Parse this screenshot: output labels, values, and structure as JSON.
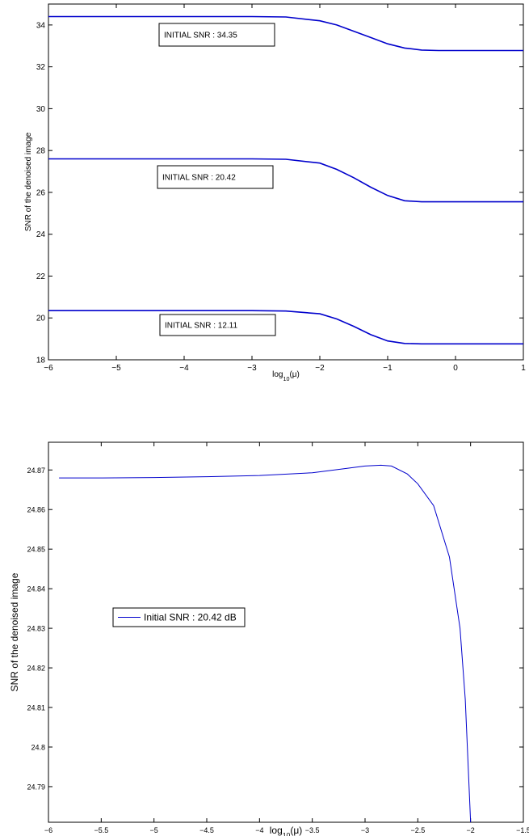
{
  "chart_data": [
    {
      "type": "line",
      "xlabel": "log_10(μ)",
      "ylabel": "SNR of the denoised image",
      "xlim": [
        -6,
        1
      ],
      "ylim": [
        18,
        35
      ],
      "xticks": [
        -6,
        -5,
        -4,
        -3,
        -2,
        -1,
        0,
        1
      ],
      "xtick_labels": [
        "−6",
        "−5",
        "−4",
        "−3",
        "−2",
        "−1",
        "0",
        "1"
      ],
      "yticks": [
        18,
        20,
        22,
        24,
        26,
        28,
        30,
        32,
        34
      ],
      "ytick_labels": [
        "18",
        "20",
        "22",
        "24",
        "26",
        "28",
        "30",
        "32",
        "34"
      ],
      "color": "#0000cc",
      "series": [
        {
          "x": [
            -6,
            -3,
            -2.5,
            -2,
            -1.75,
            -1.5,
            -1.25,
            -1,
            -0.75,
            -0.5,
            -0.25,
            0,
            1
          ],
          "y": [
            34.4,
            34.4,
            34.38,
            34.2,
            34.0,
            33.7,
            33.4,
            33.1,
            32.9,
            32.8,
            32.78,
            32.78,
            32.78
          ],
          "annotation": "INITIAL SNR : 34.35"
        },
        {
          "x": [
            -6,
            -3,
            -2.5,
            -2,
            -1.75,
            -1.5,
            -1.25,
            -1,
            -0.75,
            -0.5,
            -0.25,
            0,
            1
          ],
          "y": [
            27.6,
            27.6,
            27.58,
            27.4,
            27.1,
            26.7,
            26.25,
            25.85,
            25.6,
            25.55,
            25.55,
            25.55,
            25.55
          ],
          "annotation": "INITIAL SNR : 20.42"
        },
        {
          "x": [
            -6,
            -3,
            -2.5,
            -2,
            -1.75,
            -1.5,
            -1.25,
            -1,
            -0.75,
            -0.5,
            0,
            1
          ],
          "y": [
            20.35,
            20.35,
            20.33,
            20.2,
            19.95,
            19.6,
            19.2,
            18.9,
            18.78,
            18.76,
            18.76,
            18.76
          ],
          "annotation": "INITIAL SNR : 12.11"
        }
      ]
    },
    {
      "type": "line",
      "xlabel": "log_10(μ)",
      "ylabel": "SNR of the denoised image",
      "xlim": [
        -6,
        -1.5
      ],
      "ylim": [
        24.781,
        24.877
      ],
      "xticks": [
        -6,
        -5.5,
        -5,
        -4.5,
        -4,
        -3.5,
        -3,
        -2.5,
        -2,
        -1.5
      ],
      "xtick_labels": [
        "−6",
        "−5.5",
        "−5",
        "−4.5",
        "−4",
        "−3.5",
        "−3",
        "−2.5",
        "−2",
        "−1.5"
      ],
      "yticks": [
        24.79,
        24.8,
        24.81,
        24.82,
        24.83,
        24.84,
        24.85,
        24.86,
        24.87
      ],
      "ytick_labels": [
        "24.79",
        "24.8",
        "24.81",
        "24.82",
        "24.83",
        "24.84",
        "24.85",
        "24.86",
        "24.87"
      ],
      "color": "#0000cc",
      "legend": {
        "label": "Initial SNR : 20.42 dB",
        "position": "middle-left"
      },
      "series": [
        {
          "name": "Initial SNR : 20.42 dB",
          "x": [
            -5.9,
            -5.5,
            -5,
            -4.5,
            -4,
            -3.5,
            -3.2,
            -3,
            -2.85,
            -2.75,
            -2.6,
            -2.5,
            -2.35,
            -2.2,
            -2.1,
            -2.05,
            -2.0
          ],
          "y": [
            24.868,
            24.868,
            24.8681,
            24.8683,
            24.8686,
            24.8693,
            24.8703,
            24.871,
            24.8712,
            24.871,
            24.869,
            24.8665,
            24.861,
            24.848,
            24.83,
            24.812,
            24.781
          ]
        }
      ]
    }
  ]
}
